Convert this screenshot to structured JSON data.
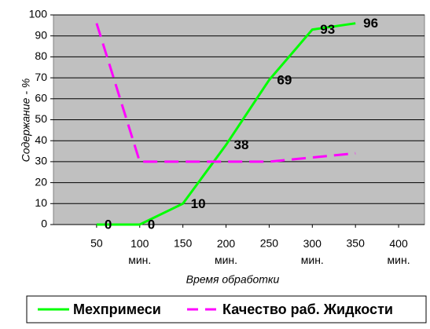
{
  "chart_data": {
    "type": "line",
    "x_label": "Время обработки",
    "y_label": "Содержание - %",
    "xlim": [
      0,
      430
    ],
    "ylim": [
      0,
      100
    ],
    "xticks": [
      50,
      {
        "value": 100,
        "label": "100 мин."
      },
      150,
      {
        "value": 200,
        "label": "200 мин."
      },
      250,
      {
        "value": 300,
        "label": "300 мин."
      },
      350,
      {
        "value": 400,
        "label": "400 мин."
      }
    ],
    "yticks": [
      0,
      10,
      20,
      30,
      40,
      50,
      60,
      70,
      80,
      90,
      100
    ],
    "grid": true,
    "x": [
      50,
      100,
      150,
      200,
      250,
      300,
      350
    ],
    "series": [
      {
        "name": "Мехпримеси",
        "color": "#00ff00",
        "dash": false,
        "show_labels": true,
        "values": [
          0,
          0,
          10,
          38,
          69,
          93,
          96
        ]
      },
      {
        "name": "Качество раб. Жидкости",
        "color": "#ff00ff",
        "dash": true,
        "show_labels": false,
        "values": [
          96,
          30,
          30,
          30,
          30,
          32,
          34
        ]
      }
    ]
  }
}
